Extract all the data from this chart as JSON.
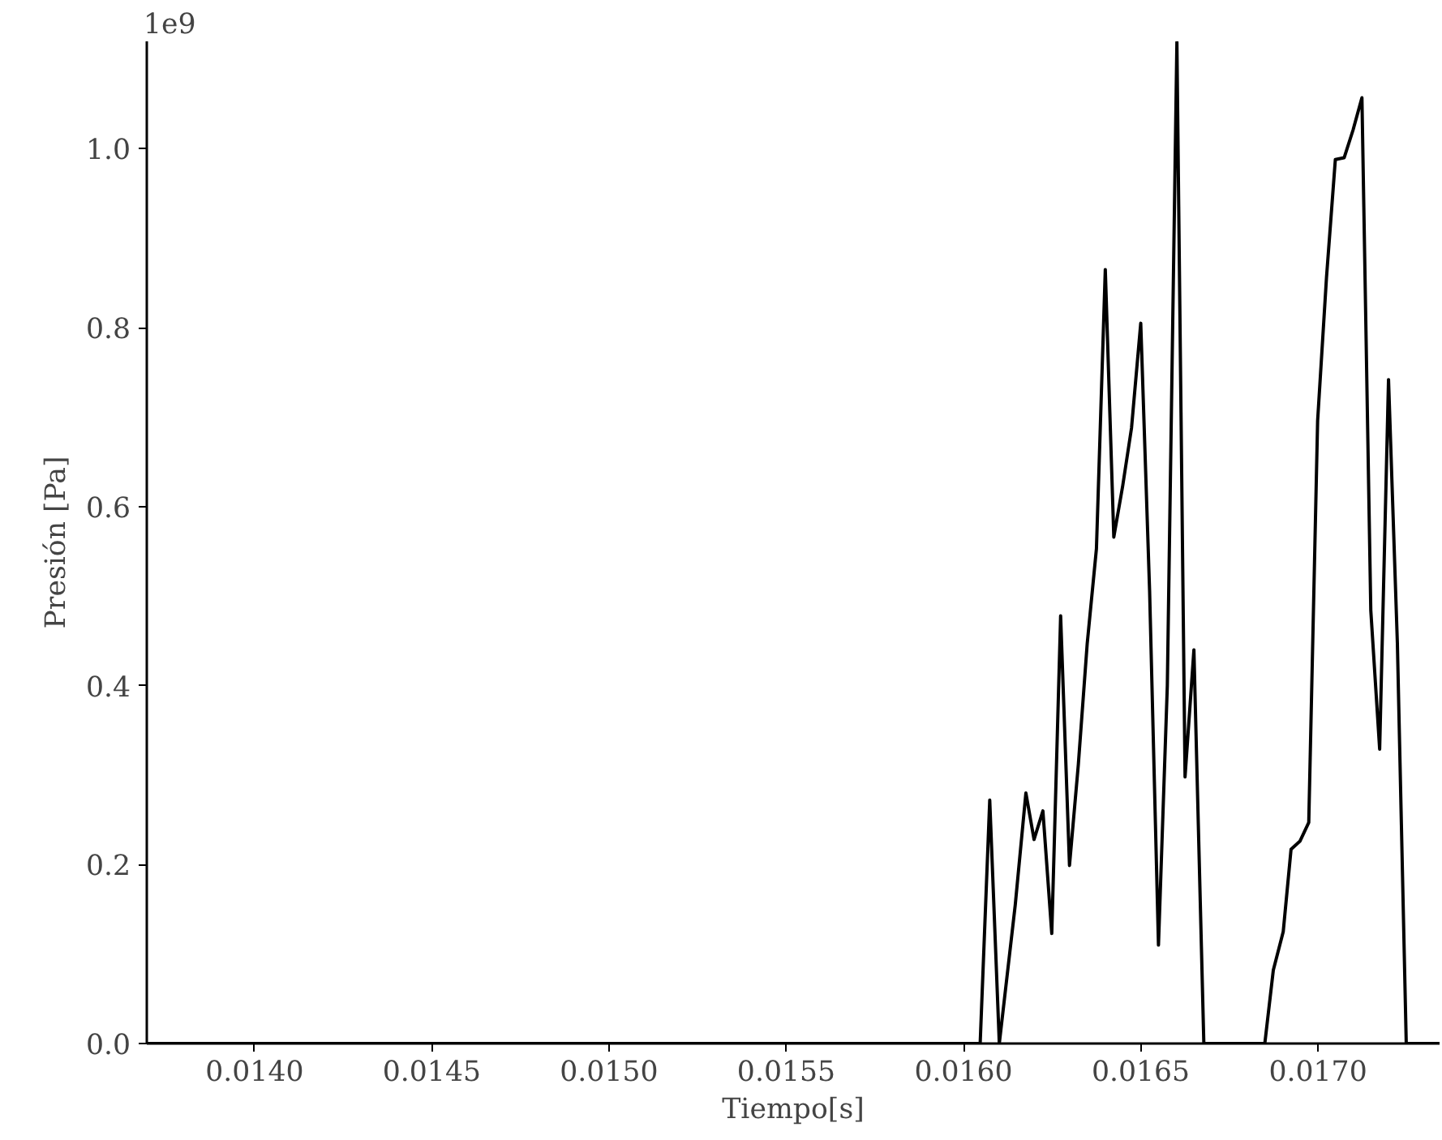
{
  "chart_data": {
    "type": "line",
    "xlabel": "Tiempo[s]",
    "ylabel": "Presión [Pa]",
    "annotations": [
      "1e9"
    ],
    "x": [
      0.013696,
      0.016047,
      0.016074,
      0.016101,
      0.016146,
      0.016176,
      0.016199,
      0.016224,
      0.016249,
      0.016274,
      0.016299,
      0.016324,
      0.016349,
      0.016375,
      0.0164,
      0.016424,
      0.016449,
      0.016474,
      0.0165,
      0.016525,
      0.01655,
      0.016575,
      0.016602,
      0.016625,
      0.01665,
      0.016678,
      0.01685,
      0.016874,
      0.016902,
      0.016924,
      0.016949,
      0.016974,
      0.016999,
      0.017024,
      0.017049,
      0.017074,
      0.017099,
      0.017124,
      0.017149,
      0.017174,
      0.017199,
      0.017224,
      0.017249,
      0.017343
    ],
    "series": [
      {
        "color": "#000000",
        "values": [
          0,
          0,
          0.272,
          0,
          0.155,
          0.28,
          0.228,
          0.26,
          0.123,
          0.478,
          0.199,
          0.312,
          0.447,
          0.553,
          0.865,
          0.566,
          0.623,
          0.688,
          0.805,
          0.506,
          0.11,
          0.4,
          1.119,
          0.298,
          0.44,
          0,
          0,
          0.082,
          0.125,
          0.217,
          0.226,
          0.247,
          0.696,
          0.856,
          0.988,
          0.99,
          1.021,
          1.057,
          0.484,
          0.329,
          0.742,
          0.447,
          0,
          0
        ]
      }
    ],
    "xlim": [
      0.013696,
      0.017343
    ],
    "ylim": [
      0,
      1.12
    ],
    "xticks": [
      {
        "value": 0.014,
        "label": "0.0140"
      },
      {
        "value": 0.0145,
        "label": "0.0145"
      },
      {
        "value": 0.015,
        "label": "0.0150"
      },
      {
        "value": 0.0155,
        "label": "0.0155"
      },
      {
        "value": 0.016,
        "label": "0.0160"
      },
      {
        "value": 0.0165,
        "label": "0.0165"
      },
      {
        "value": 0.017,
        "label": "0.0170"
      }
    ],
    "yticks": [
      {
        "value": 0,
        "label": "0.0"
      },
      0.2,
      0.4,
      0.6,
      0.8,
      {
        "value": 1,
        "label": "1.0"
      }
    ],
    "grid": false,
    "marker": "none",
    "line_style": "solid"
  }
}
